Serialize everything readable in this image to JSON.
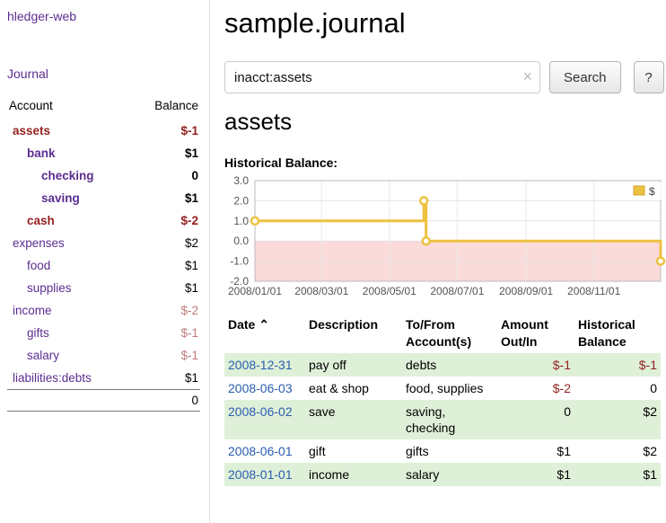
{
  "sidebar": {
    "app_title": "hledger-web",
    "journal_link": "Journal",
    "accounts": {
      "account_header": "Account",
      "balance_header": "Balance",
      "rows": [
        {
          "name": "assets",
          "balance": "$-1",
          "depth": 0,
          "bold": true,
          "name_style": "negative",
          "balance_style": "negative"
        },
        {
          "name": "bank",
          "balance": "$1",
          "depth": 1,
          "bold": true,
          "name_style": "normal",
          "balance_style": "normal"
        },
        {
          "name": "checking",
          "balance": "0",
          "depth": 2,
          "bold": true,
          "name_style": "normal",
          "balance_style": "normal"
        },
        {
          "name": "saving",
          "balance": "$1",
          "depth": 2,
          "bold": true,
          "name_style": "normal",
          "balance_style": "normal"
        },
        {
          "name": "cash",
          "balance": "$-2",
          "depth": 1,
          "bold": true,
          "name_style": "negative",
          "balance_style": "negative"
        },
        {
          "name": "expenses",
          "balance": "$2",
          "depth": 0,
          "bold": false,
          "name_style": "normal",
          "balance_style": "normal"
        },
        {
          "name": "food",
          "balance": "$1",
          "depth": 1,
          "bold": false,
          "name_style": "normal",
          "balance_style": "normal"
        },
        {
          "name": "supplies",
          "balance": "$1",
          "depth": 1,
          "bold": false,
          "name_style": "normal",
          "balance_style": "normal"
        },
        {
          "name": "income",
          "balance": "$-2",
          "depth": 0,
          "bold": false,
          "name_style": "normal",
          "balance_style": "negative-light"
        },
        {
          "name": "gifts",
          "balance": "$-1",
          "depth": 1,
          "bold": false,
          "name_style": "normal",
          "balance_style": "negative-light"
        },
        {
          "name": "salary",
          "balance": "$-1",
          "depth": 1,
          "bold": false,
          "name_style": "normal",
          "balance_style": "negative-light"
        },
        {
          "name": "liabilities:debts",
          "balance": "$1",
          "depth": 0,
          "bold": false,
          "name_style": "normal",
          "balance_style": "normal"
        }
      ],
      "total": "0"
    }
  },
  "main": {
    "title": "sample.journal",
    "search": {
      "value": "inacct:assets",
      "clear_icon": "×",
      "search_button": "Search",
      "help_button": "?"
    },
    "account_heading": "assets",
    "chart_title": "Historical Balance:"
  },
  "chart_data": {
    "type": "line",
    "step": true,
    "title": "Historical Balance",
    "legend": {
      "label": "$",
      "position": "top-right",
      "color": "#edc240"
    },
    "x_min": "2008-01-01",
    "x_max": "2008-12-31",
    "y_min": -2,
    "y_max": 3,
    "grid": true,
    "y_ticks": [
      "3.0",
      "2.0",
      "1.0",
      "0.0",
      "-1.0",
      "-2.0"
    ],
    "x_ticks": [
      {
        "date": "2008-01-01",
        "label": "2008/01/01"
      },
      {
        "date": "2008-03-01",
        "label": "2008/03/01"
      },
      {
        "date": "2008-05-01",
        "label": "2008/05/01"
      },
      {
        "date": "2008-07-01",
        "label": "2008/07/01"
      },
      {
        "date": "2008-09-01",
        "label": "2008/09/01"
      },
      {
        "date": "2008-11-01",
        "label": "2008/11/01"
      }
    ],
    "series": [
      {
        "name": "$",
        "color": "#edc240",
        "points": [
          {
            "date": "2008-01-01",
            "value": 1
          },
          {
            "date": "2008-06-01",
            "value": 2
          },
          {
            "date": "2008-06-03",
            "value": 0
          },
          {
            "date": "2008-12-31",
            "value": -1
          }
        ]
      }
    ],
    "negative_region": {
      "from": 0,
      "to": -2,
      "color": "#fbdada"
    }
  },
  "register": {
    "headers": {
      "date": "Date",
      "sort_icon": "⌃",
      "description": "Description",
      "accounts": "To/From Account(s)",
      "amount": "Amount Out/In",
      "balance": "Historical Balance"
    },
    "rows": [
      {
        "date": "2008-12-31",
        "description": "pay off",
        "accounts": "debts",
        "amount": "$-1",
        "balance": "$-1",
        "amount_negative": true,
        "balance_negative": true,
        "shaded": true
      },
      {
        "date": "2008-06-03",
        "description": "eat & shop",
        "accounts": "food, supplies",
        "amount": "$-2",
        "balance": "0",
        "amount_negative": true,
        "balance_negative": false,
        "shaded": false
      },
      {
        "date": "2008-06-02",
        "description": "save",
        "accounts": "saving, checking",
        "amount": "0",
        "balance": "$2",
        "amount_negative": false,
        "balance_negative": false,
        "shaded": true
      },
      {
        "date": "2008-06-01",
        "description": "gift",
        "accounts": "gifts",
        "amount": "$1",
        "balance": "$2",
        "amount_negative": false,
        "balance_negative": false,
        "shaded": false
      },
      {
        "date": "2008-01-01",
        "description": "income",
        "accounts": "salary",
        "amount": "$1",
        "balance": "$1",
        "amount_negative": false,
        "balance_negative": false,
        "shaded": true
      }
    ]
  },
  "colors": {
    "link_purple": "#5b2d90",
    "date_blue": "#2a5db0",
    "negative_red": "#941f1f",
    "negative_light_red": "#bd7b7b",
    "row_shade_green": "#dff0d8",
    "chart_line_yellow": "#edc240",
    "chart_negative_pink": "#fbdada"
  }
}
